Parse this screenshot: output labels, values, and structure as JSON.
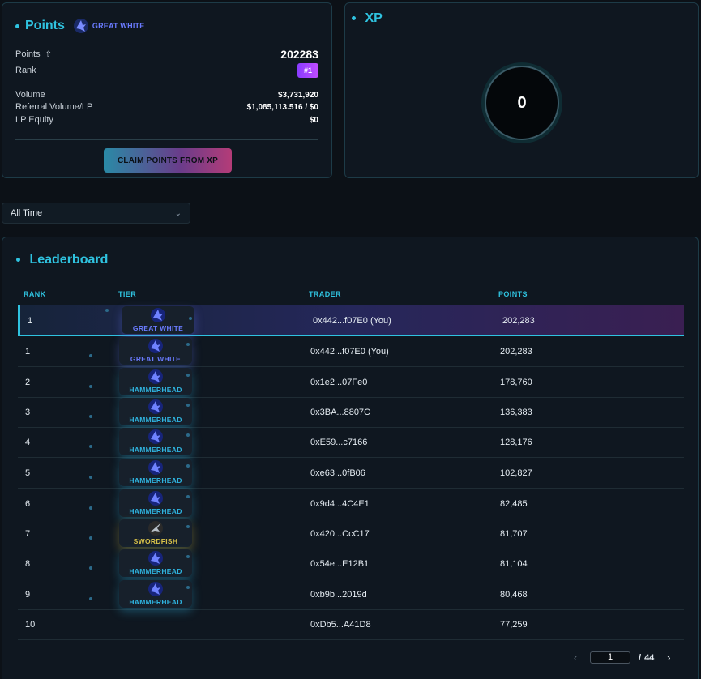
{
  "points_panel": {
    "title": "Points",
    "tier_label": "GREAT WHITE",
    "points_label": "Points",
    "points_value": "202283",
    "rank_label": "Rank",
    "rank_value": "#1",
    "volume_label": "Volume",
    "volume_value": "$3,731,920",
    "referral_label": "Referral Volume/LP",
    "referral_value": "$1,085,113.516 / $0",
    "lp_equity_label": "LP Equity",
    "lp_equity_value": "$0",
    "claim_button": "CLAIM POINTS FROM XP"
  },
  "xp_panel": {
    "title": "XP",
    "value": "0"
  },
  "timeframe": {
    "selected": "All Time"
  },
  "leaderboard": {
    "title": "Leaderboard",
    "columns": [
      "RANK",
      "TIER",
      "TRADER",
      "POINTS"
    ],
    "rows": [
      {
        "rank": "1",
        "tier": "GREAT WHITE",
        "trader": "0x442...f07E0 (You)",
        "points": "202,283"
      },
      {
        "rank": "1",
        "tier": "GREAT WHITE",
        "trader": "0x442...f07E0 (You)",
        "points": "202,283"
      },
      {
        "rank": "2",
        "tier": "HAMMERHEAD",
        "trader": "0x1e2...07Fe0",
        "points": "178,760"
      },
      {
        "rank": "3",
        "tier": "HAMMERHEAD",
        "trader": "0x3BA...8807C",
        "points": "136,383"
      },
      {
        "rank": "4",
        "tier": "HAMMERHEAD",
        "trader": "0xE59...c7166",
        "points": "128,176"
      },
      {
        "rank": "5",
        "tier": "HAMMERHEAD",
        "trader": "0xe63...0fB06",
        "points": "102,827"
      },
      {
        "rank": "6",
        "tier": "HAMMERHEAD",
        "trader": "0x9d4...4C4E1",
        "points": "82,485"
      },
      {
        "rank": "7",
        "tier": "SWORDFISH",
        "trader": "0x420...CcC17",
        "points": "81,707"
      },
      {
        "rank": "8",
        "tier": "HAMMERHEAD",
        "trader": "0x54e...E12B1",
        "points": "81,104"
      },
      {
        "rank": "9",
        "tier": "HAMMERHEAD",
        "trader": "0xb9b...2019d",
        "points": "80,468"
      },
      {
        "rank": "10",
        "tier": "",
        "trader": "0xDb5...A41D8",
        "points": "77,259"
      }
    ],
    "pagination": {
      "current_page": "1",
      "separator": "/",
      "total_pages": "44"
    }
  },
  "colors": {
    "accent": "#2fc3e0",
    "great_white": "#6a7bff",
    "hammerhead": "#2fb4e0",
    "swordfish": "#d8c24a",
    "rank_badge": "#a044ff"
  },
  "icons": {
    "upload": "upload-icon",
    "great_white": "great-white-shark-icon",
    "hammerhead": "hammerhead-shark-icon",
    "swordfish": "swordfish-icon",
    "chevron": "chevron-down-icon"
  }
}
